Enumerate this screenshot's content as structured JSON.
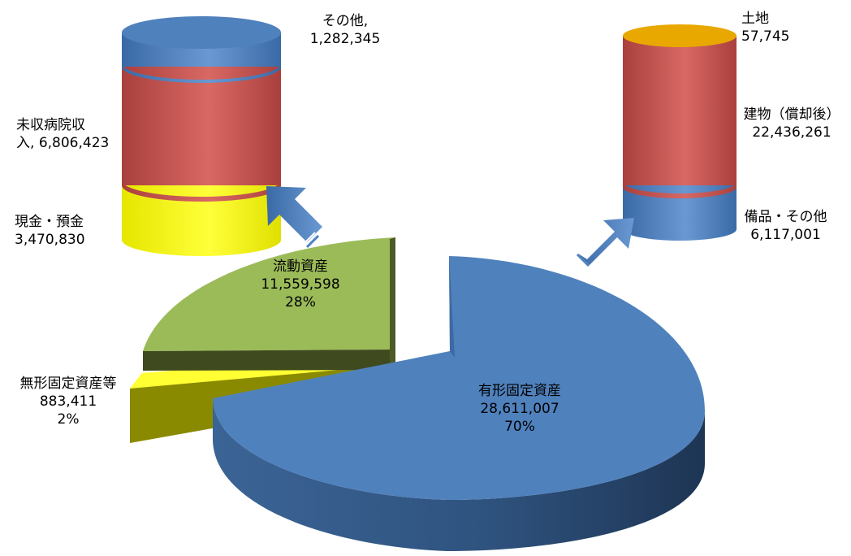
{
  "chart_data": {
    "type": "pie",
    "pie": {
      "slices": [
        {
          "key": "tangible",
          "label": "有形固定資産",
          "value_text": "28,611,007",
          "value": 28611007,
          "percent": "70%",
          "color": "#4f81bd"
        },
        {
          "key": "current",
          "label": "流動資産",
          "value_text": "11,559,598",
          "value": 11559598,
          "percent": "28%",
          "color": "#9bbb59"
        },
        {
          "key": "intangible",
          "label": "無形固定資産等",
          "value_text": "883,411",
          "value": 883411,
          "percent": "2%",
          "color": "#f2f200"
        }
      ]
    },
    "left_stack": {
      "type": "stacked-cylinder",
      "segments": [
        {
          "label": "現金・預金",
          "value_text": "3,470,830",
          "value": 3470830,
          "color": "#ffff00"
        },
        {
          "label": "未収病院収入, ",
          "label_line1": "未収病院収",
          "label_line2": "入, ",
          "value_text": "6,806,423",
          "value": 6806423,
          "color": "#c0504d"
        },
        {
          "label": "その他,",
          "value_text": "1,282,345",
          "value": 1282345,
          "color": "#4f81bd"
        }
      ]
    },
    "right_stack": {
      "type": "stacked-cylinder",
      "segments": [
        {
          "label": "備品・その他",
          "value_text": "6,117,001",
          "value": 6117001,
          "color": "#4f81bd"
        },
        {
          "label": "建物（償却後）",
          "value_text": "22,436,261",
          "value": 22436261,
          "color": "#c0504d"
        },
        {
          "label": "土地",
          "value_text": "57,745",
          "value": 57745,
          "color": "#e8a800"
        }
      ]
    }
  }
}
